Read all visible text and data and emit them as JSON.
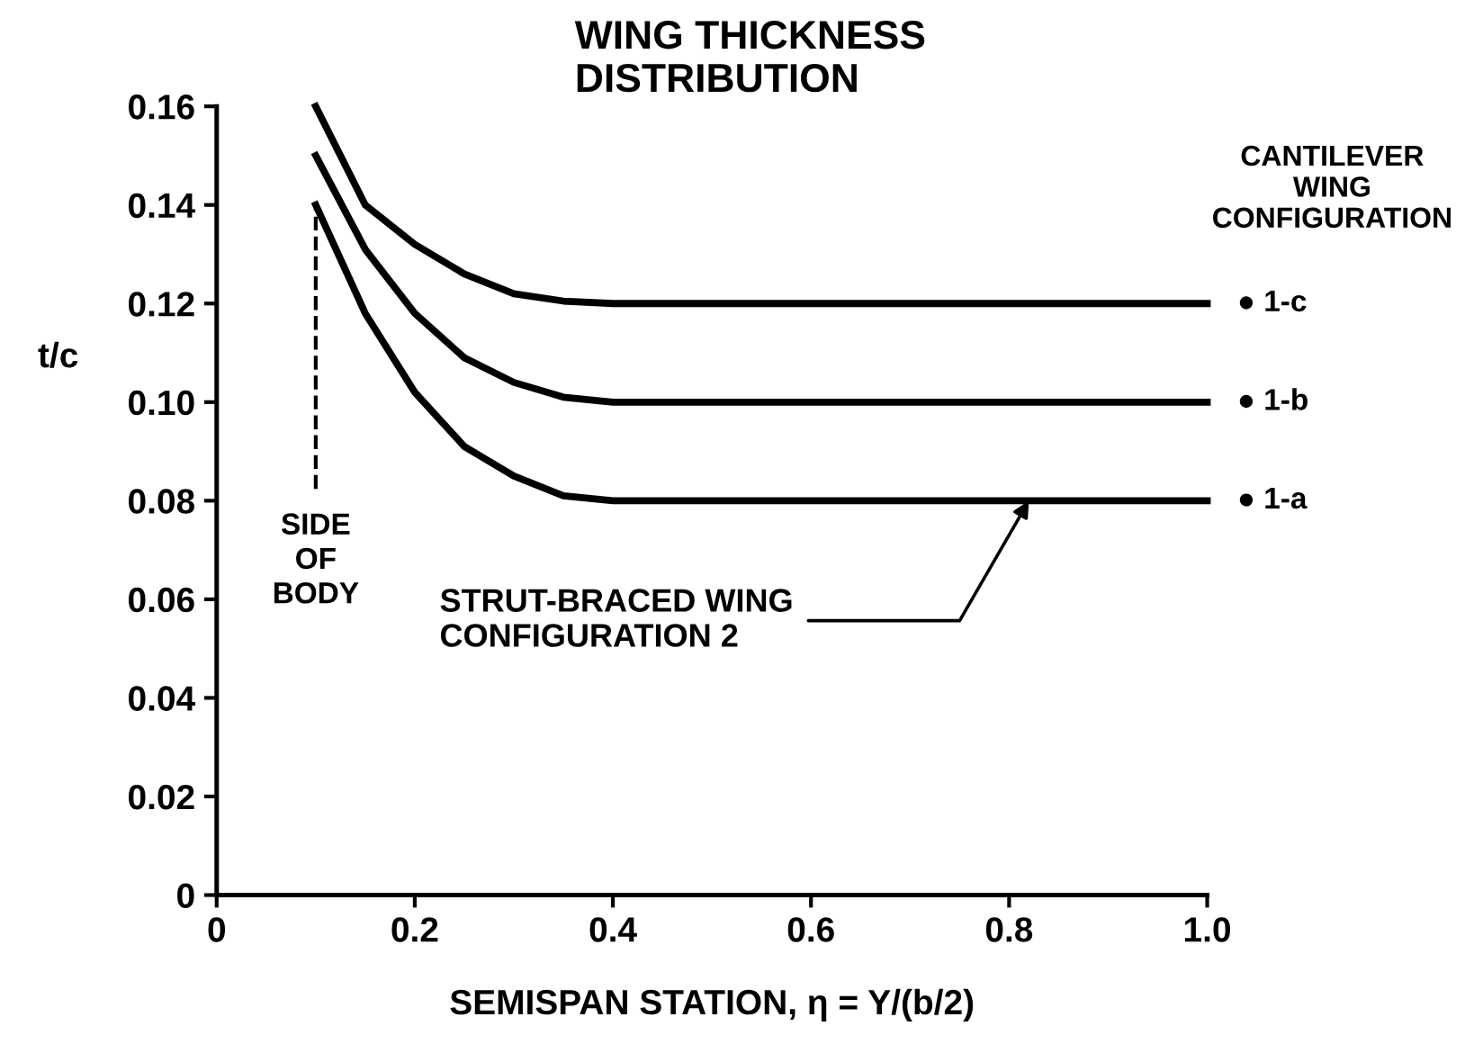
{
  "chart_data": {
    "type": "line",
    "title": "WING THICKNESS\nDISTRIBUTION",
    "xlabel": "SEMISPAN STATION, η = Y/(b/2)",
    "ylabel": "t/c",
    "legend_title": "CANTILEVER\nWING\nCONFIGURATION",
    "xlim": [
      0,
      1.0
    ],
    "xticks": [
      0,
      0.2,
      0.4,
      0.6,
      0.8,
      {
        "value": 1.0,
        "label": "1.0"
      }
    ],
    "ylim": [
      0,
      0.16
    ],
    "yticks": [
      0,
      0.02,
      0.04,
      0.06,
      0.08,
      {
        "value": 0.1,
        "label": "0.10"
      },
      0.12,
      0.14,
      0.16
    ],
    "x": [
      0.1,
      0.15,
      0.2,
      0.25,
      0.3,
      0.35,
      0.4,
      0.5,
      0.6,
      0.7,
      0.8,
      0.9,
      1.0
    ],
    "series": [
      {
        "name": "● 1-c",
        "color": "#000000",
        "values": [
          0.16,
          0.14,
          0.132,
          0.126,
          0.122,
          0.1205,
          0.12,
          0.12,
          0.12,
          0.12,
          0.12,
          0.12,
          0.12
        ]
      },
      {
        "name": "● 1-b",
        "color": "#000000",
        "values": [
          0.15,
          0.131,
          0.118,
          0.109,
          0.104,
          0.101,
          0.1,
          0.1,
          0.1,
          0.1,
          0.1,
          0.1,
          0.1
        ]
      },
      {
        "name": "● 1-a",
        "color": "#000000",
        "values": [
          0.14,
          0.118,
          0.102,
          0.091,
          0.085,
          0.081,
          0.08,
          0.08,
          0.08,
          0.08,
          0.08,
          0.08,
          0.08
        ]
      }
    ],
    "ref_lines": [
      {
        "axis": "x",
        "value": 0.1,
        "label": "SIDE\nOF\nBODY",
        "line_style": "dashed",
        "color": "#000000"
      }
    ],
    "annotations": [
      {
        "text": "STRUT-BRACED WING\nCONFIGURATION 2",
        "x": 0.82,
        "y": 0.08
      }
    ],
    "grid": false,
    "legend": false,
    "marker": "none",
    "line_style": "solid"
  }
}
